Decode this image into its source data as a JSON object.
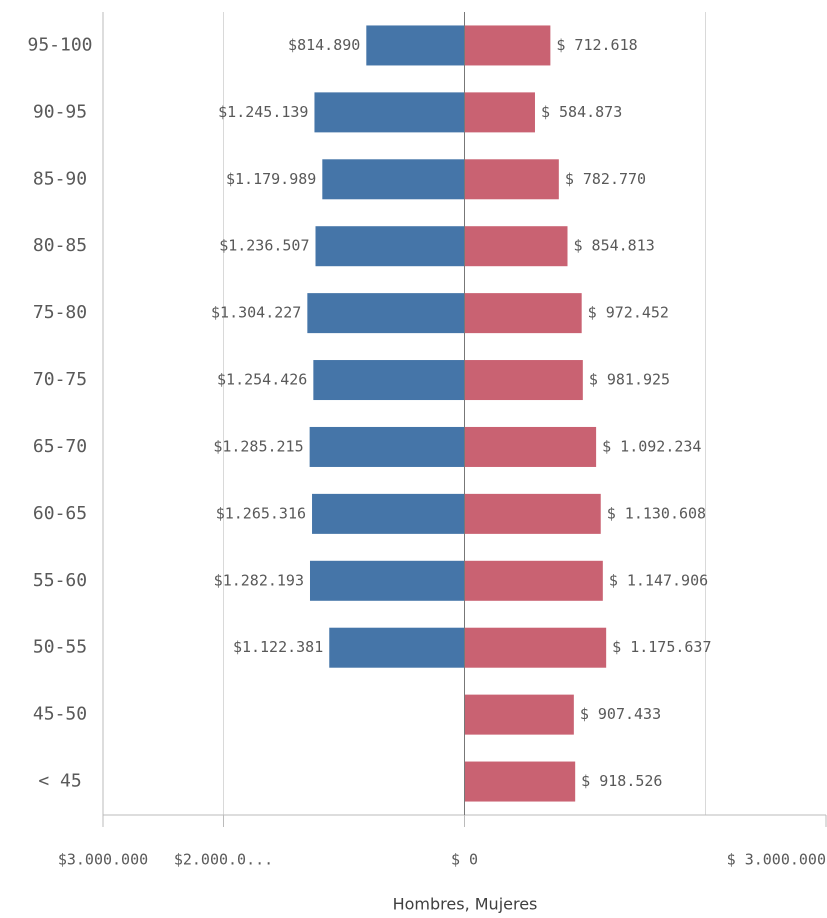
{
  "chart_data": {
    "type": "butterfly-bar",
    "x_label": "Hombres, Mujeres",
    "categories": [
      "95-100",
      "90-95",
      "85-90",
      "80-85",
      "75-80",
      "70-75",
      "65-70",
      "60-65",
      "55-60",
      "50-55",
      "45-50",
      "< 45"
    ],
    "series": [
      {
        "name": "Hombres",
        "color": "#4575a8",
        "values": [
          814890,
          1245139,
          1179989,
          1236507,
          1304227,
          1254426,
          1285215,
          1265316,
          1282193,
          1122381,
          null,
          null
        ],
        "value_labels": [
          "$814.890",
          "$1.245.139",
          "$1.179.989",
          "$1.236.507",
          "$1.304.227",
          "$1.254.426",
          "$1.285.215",
          "$1.265.316",
          "$1.282.193",
          "$1.122.381",
          null,
          null
        ]
      },
      {
        "name": "Mujeres",
        "color": "#c96272",
        "values": [
          712618,
          584873,
          782770,
          854813,
          972452,
          981925,
          1092234,
          1130608,
          1147906,
          1175637,
          907433,
          918526
        ],
        "value_labels": [
          "$ 712.618",
          "$ 584.873",
          "$ 782.770",
          "$ 854.813",
          "$ 972.452",
          "$ 981.925",
          "$ 1.092.234",
          "$ 1.130.608",
          "$ 1.147.906",
          "$ 1.175.637",
          "$ 907.433",
          "$ 918.526"
        ]
      }
    ],
    "xlim": [
      -3000000,
      3000000
    ],
    "xticks": [
      {
        "value": -3000000,
        "label": "$3.000.000"
      },
      {
        "value": -2000000,
        "label": "$2.000.0..."
      },
      {
        "value": 0,
        "label": "$ 0"
      },
      {
        "value": 2000000,
        "label": null
      },
      {
        "value": 3000000,
        "label": "$ 3.000.000"
      }
    ],
    "grid": true
  }
}
